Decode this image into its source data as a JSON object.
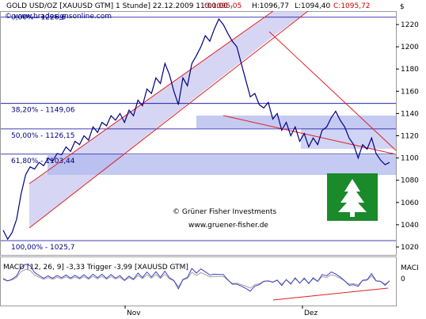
{
  "header": {
    "symbol_text": "GOLD USD/OZ [XAUUSD GTM] 1 Stunde] 22.12.2009 11:00:00 - ",
    "o_text": "O:1095,05",
    "h_text": "H:1096,77",
    "l_text": "L:1094,40",
    "c_text": "C:1095,72",
    "currency": "$",
    "url": "© www.bradesignsonline.com"
  },
  "watermark": {
    "line1": "© Grüner Fisher Investments",
    "line2": "www.gruener-fisher.de"
  },
  "fib_levels": [
    {
      "label": "0,00% - 1226,6",
      "value": 1226.6
    },
    {
      "label": "38,20% - 1149,06",
      "value": 1149.06
    },
    {
      "label": "50,00% - 1126,15",
      "value": 1126.15
    },
    {
      "label": "61,80% - 1103,44",
      "value": 1103.44
    },
    {
      "label": "100,00% - 1025,7",
      "value": 1025.7
    }
  ],
  "macd": {
    "label": "MACD [12, 26, 9] -3,33 Trigger -3,99 [XAUUSD GTM]",
    "axis_label": "MACI",
    "zero_label": "0"
  },
  "x_axis": {
    "labels": [
      "Nov",
      "Dez"
    ]
  },
  "colors": {
    "price_line": "#000080",
    "channel_fill": "#c8c8f0",
    "zone_fill": "#b0b8ee",
    "trend_line": "#e02020",
    "fib_line": "#0000a0",
    "macd_line": "#4040c0",
    "trigger_line": "#a0a0a0",
    "tree_green": "#1a8a2a"
  },
  "chart_data": {
    "type": "line",
    "title": "GOLD USD/OZ [XAUUSD GTM] 1 Stunde",
    "ylim": [
      1015,
      1232
    ],
    "y_ticks": [
      1020,
      1040,
      1060,
      1080,
      1100,
      1120,
      1140,
      1160,
      1180,
      1200,
      1220
    ],
    "x_ticks": [
      "Nov",
      "Dez"
    ],
    "series": [
      {
        "name": "GOLD USD/OZ",
        "values": [
          1035,
          1027,
          1033,
          1045,
          1068,
          1085,
          1092,
          1090,
          1096,
          1093,
          1100,
          1097,
          1104,
          1103,
          1110,
          1106,
          1115,
          1112,
          1120,
          1116,
          1128,
          1123,
          1132,
          1129,
          1138,
          1134,
          1140,
          1132,
          1143,
          1138,
          1152,
          1147,
          1162,
          1158,
          1172,
          1167,
          1185,
          1175,
          1160,
          1148,
          1172,
          1165,
          1185,
          1192,
          1200,
          1210,
          1205,
          1216,
          1225,
          1220,
          1212,
          1205,
          1200,
          1185,
          1170,
          1155,
          1158,
          1148,
          1145,
          1150,
          1135,
          1140,
          1125,
          1132,
          1120,
          1128,
          1115,
          1122,
          1110,
          1118,
          1112,
          1125,
          1128,
          1136,
          1142,
          1134,
          1128,
          1118,
          1112,
          1100,
          1112,
          1108,
          1118,
          1104,
          1098,
          1094,
          1096
        ]
      }
    ]
  }
}
